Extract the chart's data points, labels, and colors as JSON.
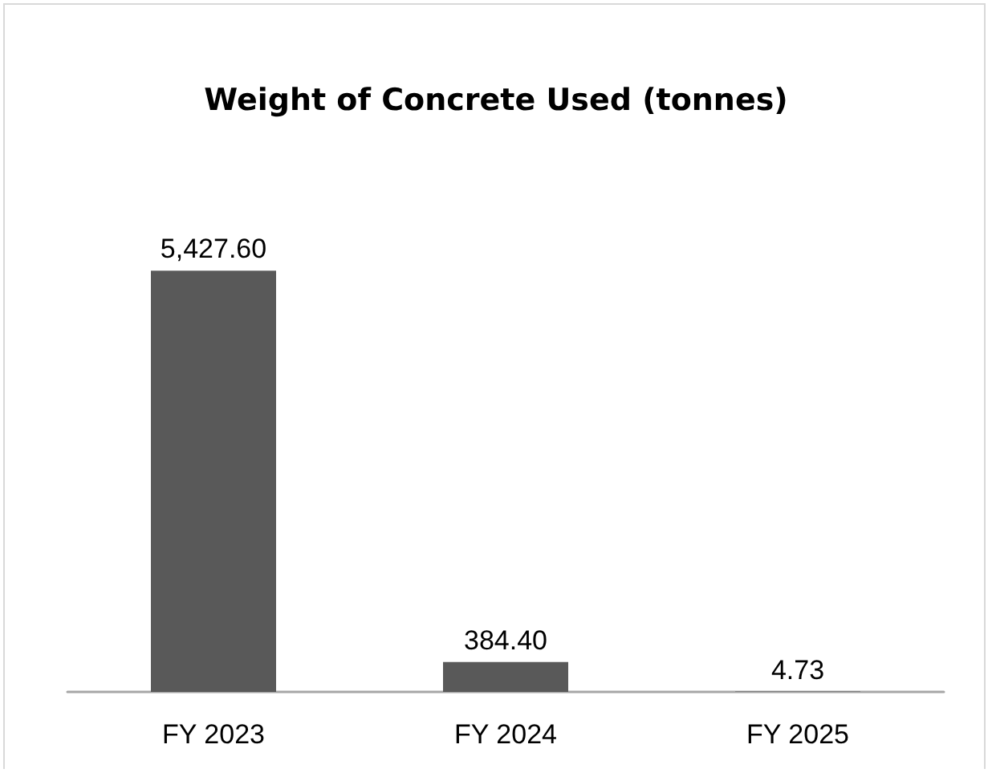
{
  "chart_data": {
    "type": "bar",
    "title": "Weight of Concrete Used (tonnes)",
    "categories": [
      "FY 2023",
      "FY 2024",
      "FY 2025"
    ],
    "values": [
      5427.6,
      384.4,
      4.73
    ],
    "value_labels": [
      "5,427.60",
      "384.40",
      "4.73"
    ],
    "color": "#595959",
    "tick_labels": "x"
  }
}
